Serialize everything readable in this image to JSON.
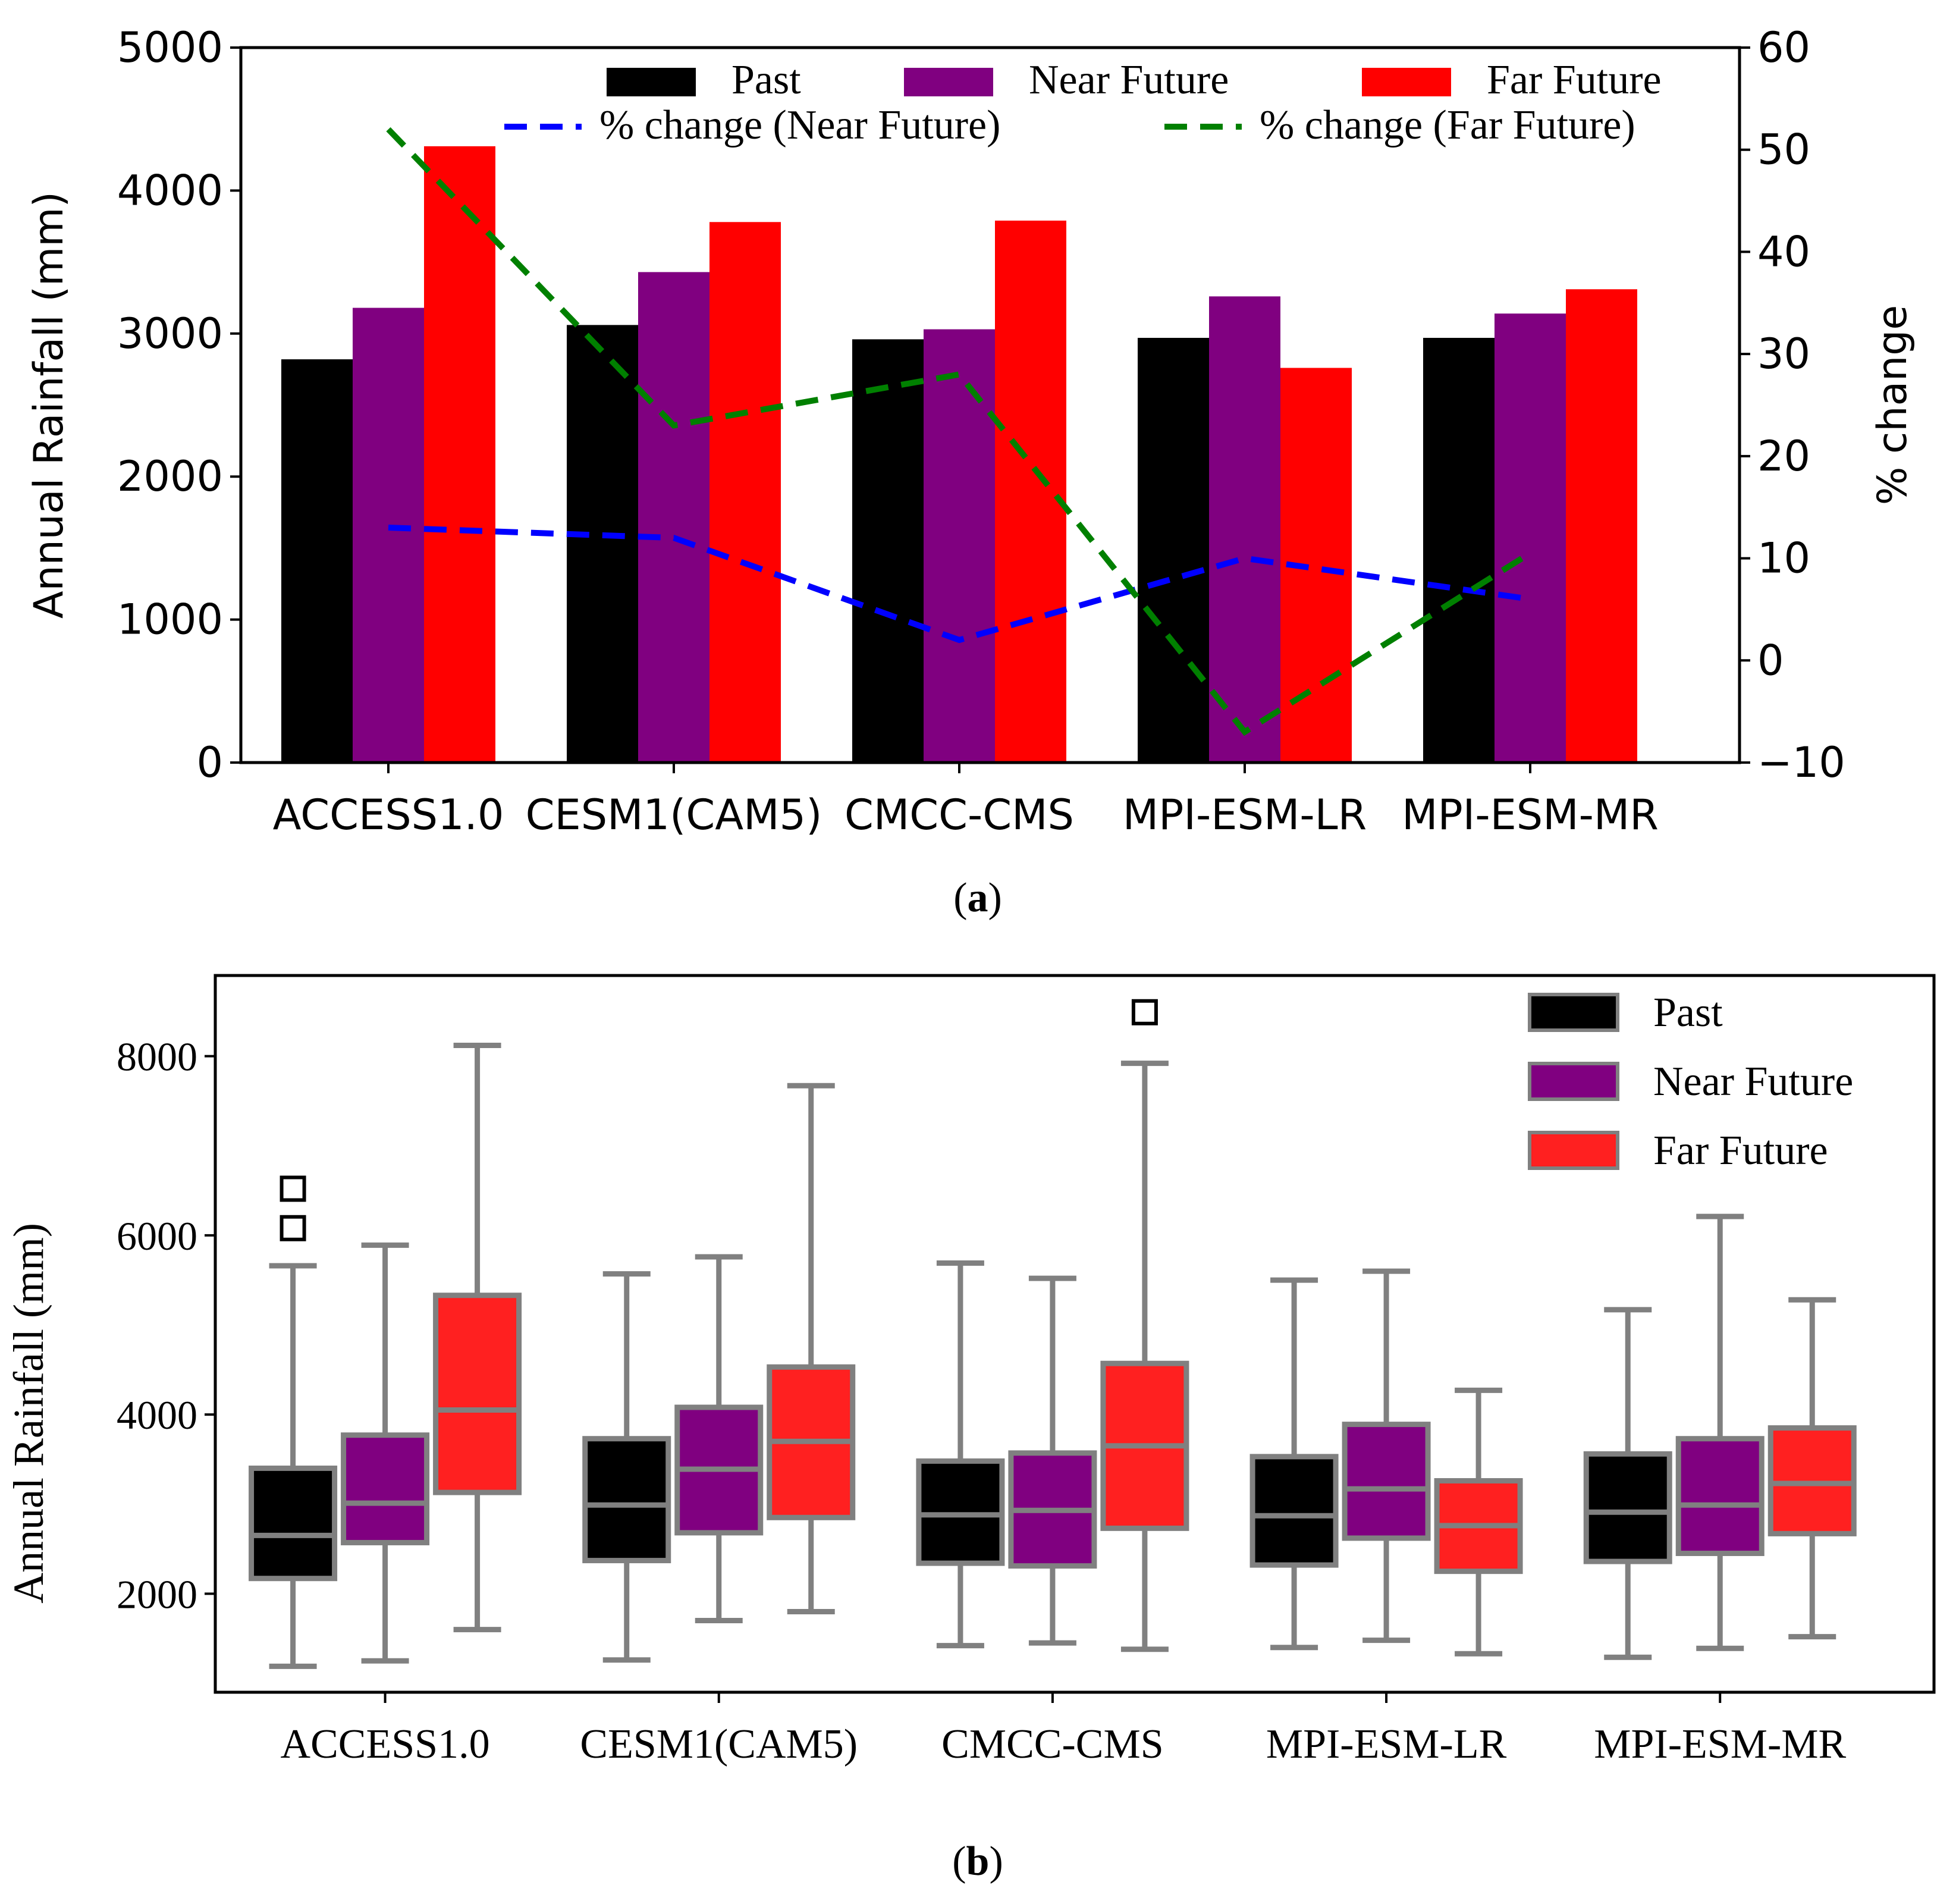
{
  "chart_data": [
    {
      "type": "bar",
      "panel_label": "(a)",
      "panel_letter": "a",
      "categories": [
        "ACCESS1.0",
        "CESM1(CAM5)",
        "CMCC-CMS",
        "MPI-ESM-LR",
        "MPI-ESM-MR"
      ],
      "series": [
        {
          "name": "Past",
          "color": "#000000",
          "values": [
            2820,
            3060,
            2960,
            2970,
            2970
          ]
        },
        {
          "name": "Near Future",
          "color": "#800080",
          "values": [
            3180,
            3430,
            3030,
            3260,
            3140
          ]
        },
        {
          "name": "Far Future",
          "color": "#ff0000",
          "values": [
            4310,
            3780,
            3790,
            2760,
            3310
          ]
        }
      ],
      "lines": [
        {
          "name": "% change (Near Future)",
          "color": "#0000ff",
          "axis": "right",
          "values": [
            13,
            12,
            2,
            10,
            6
          ]
        },
        {
          "name": "% change (Far Future)",
          "color": "#008000",
          "axis": "right",
          "values": [
            52,
            23,
            28,
            -7,
            10.5
          ]
        }
      ],
      "ylabel": "Annual Rainfall (mm)",
      "ylim": [
        0,
        5000
      ],
      "yticks": [
        "0",
        "1000",
        "2000",
        "3000",
        "4000",
        "5000"
      ],
      "y2label": "% change",
      "y2lim": [
        -10,
        60
      ],
      "y2ticks": [
        "−10",
        "0",
        "10",
        "20",
        "30",
        "40",
        "50",
        "60"
      ],
      "legend_position": "top",
      "grid": false
    },
    {
      "type": "box",
      "panel_label": "(b)",
      "panel_letter": "b",
      "categories": [
        "ACCESS1.0",
        "CESM1(CAM5)",
        "CMCC-CMS",
        "MPI-ESM-LR",
        "MPI-ESM-MR"
      ],
      "series": [
        {
          "name": "Past",
          "color": "#000000",
          "boxes": [
            {
              "whislo": 1190,
              "q1": 2170,
              "med": 2650,
              "q3": 3400,
              "whishi": 5660,
              "fliers": [
                6080,
                6520
              ]
            },
            {
              "whislo": 1260,
              "q1": 2370,
              "med": 2990,
              "q3": 3730,
              "whishi": 5570,
              "fliers": []
            },
            {
              "whislo": 1420,
              "q1": 2340,
              "med": 2880,
              "q3": 3480,
              "whishi": 5690,
              "fliers": []
            },
            {
              "whislo": 1400,
              "q1": 2320,
              "med": 2870,
              "q3": 3530,
              "whishi": 5500,
              "fliers": []
            },
            {
              "whislo": 1290,
              "q1": 2360,
              "med": 2910,
              "q3": 3560,
              "whishi": 5170,
              "fliers": []
            }
          ]
        },
        {
          "name": "Near Future",
          "color": "#800080",
          "boxes": [
            {
              "whislo": 1250,
              "q1": 2570,
              "med": 3010,
              "q3": 3770,
              "whishi": 5890,
              "fliers": []
            },
            {
              "whislo": 1700,
              "q1": 2680,
              "med": 3390,
              "q3": 4080,
              "whishi": 5760,
              "fliers": []
            },
            {
              "whislo": 1450,
              "q1": 2310,
              "med": 2930,
              "q3": 3570,
              "whishi": 5520,
              "fliers": []
            },
            {
              "whislo": 1480,
              "q1": 2620,
              "med": 3170,
              "q3": 3890,
              "whishi": 5600,
              "fliers": []
            },
            {
              "whislo": 1390,
              "q1": 2450,
              "med": 2990,
              "q3": 3730,
              "whishi": 6210,
              "fliers": []
            }
          ]
        },
        {
          "name": "Far Future",
          "color": "#ff2020",
          "boxes": [
            {
              "whislo": 1600,
              "q1": 3130,
              "med": 4050,
              "q3": 5330,
              "whishi": 8120,
              "fliers": []
            },
            {
              "whislo": 1800,
              "q1": 2850,
              "med": 3700,
              "q3": 4530,
              "whishi": 7670,
              "fliers": []
            },
            {
              "whislo": 1380,
              "q1": 2730,
              "med": 3650,
              "q3": 4570,
              "whishi": 7920,
              "fliers": [
                8490
              ]
            },
            {
              "whislo": 1330,
              "q1": 2250,
              "med": 2760,
              "q3": 3260,
              "whishi": 4270,
              "fliers": []
            },
            {
              "whislo": 1520,
              "q1": 2670,
              "med": 3230,
              "q3": 3850,
              "whishi": 5280,
              "fliers": []
            }
          ]
        }
      ],
      "box_edge_color": "#808080",
      "ylabel": "Annual Rainfall (mm)",
      "ylim": [
        900,
        8900
      ],
      "yticks": [
        "2000",
        "4000",
        "6000",
        "8000"
      ],
      "legend_position": "top-right",
      "grid": false
    }
  ]
}
